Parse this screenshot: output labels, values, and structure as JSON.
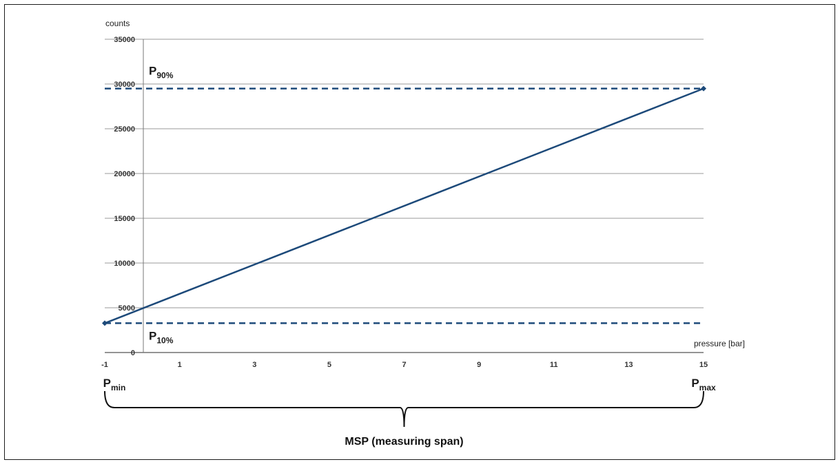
{
  "chart_data": {
    "type": "line",
    "ylabel": "counts",
    "xlabel": "pressure [bar]",
    "xlim": [
      -1,
      15
    ],
    "ylim": [
      0,
      35000
    ],
    "x_ticks": [
      -1,
      1,
      3,
      5,
      7,
      9,
      11,
      13,
      15
    ],
    "y_ticks": [
      0,
      5000,
      10000,
      15000,
      20000,
      25000,
      30000,
      35000
    ],
    "grid": "horizontal",
    "series": [
      {
        "points": [
          [
            -1,
            3277
          ],
          [
            15,
            29491
          ]
        ],
        "color": "#1d4a7a"
      }
    ],
    "reference_lines": [
      {
        "y": 29491,
        "style": "dashed",
        "main": "P",
        "sub": "90%"
      },
      {
        "y": 3277,
        "style": "dashed",
        "main": "P",
        "sub": "10%"
      }
    ],
    "x_markers": [
      {
        "x": -1,
        "main": "P",
        "sub": "min"
      },
      {
        "x": 15,
        "main": "P",
        "sub": "max"
      }
    ],
    "span_label": "MSP (measuring span)"
  }
}
